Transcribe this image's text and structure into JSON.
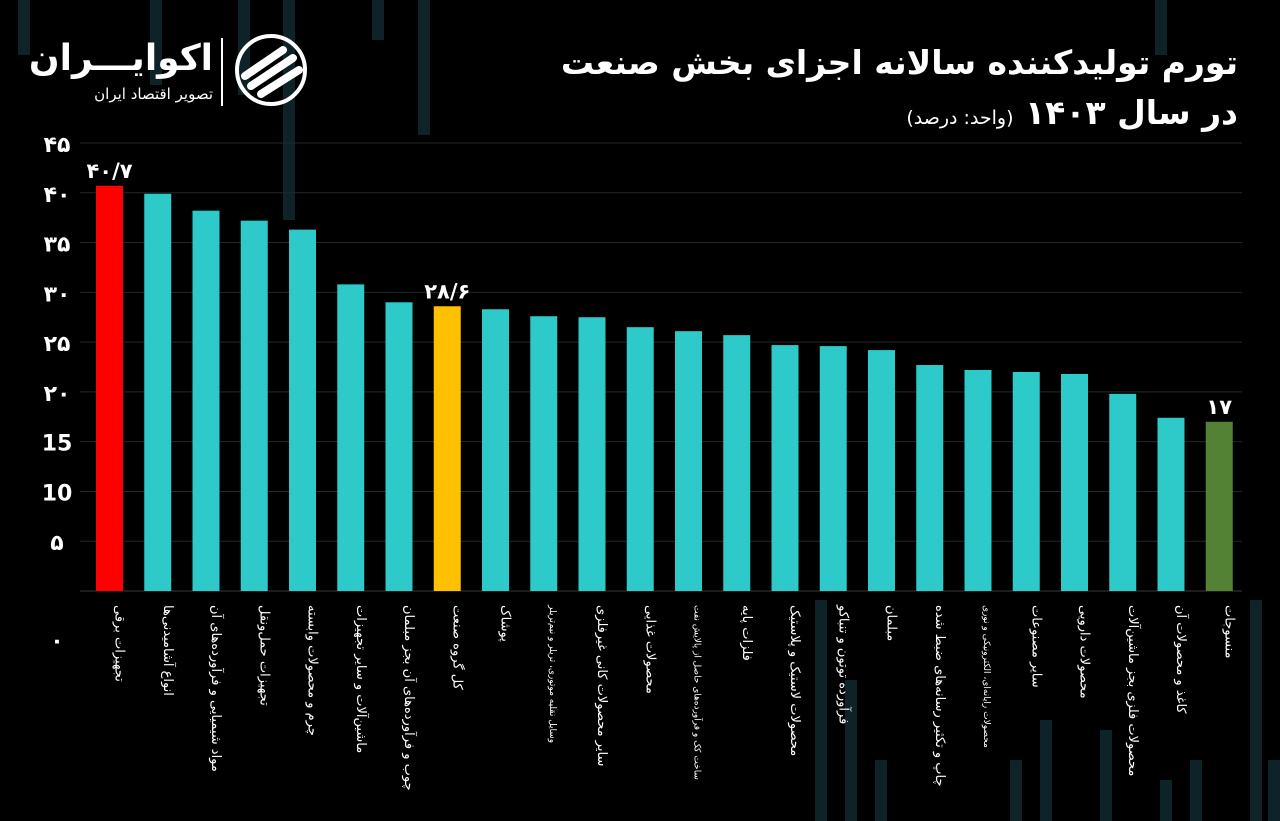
{
  "header": {
    "title_line1": "تورم تولیدکننده سالانه اجزای بخش صنعت",
    "title_line2": "در سال ۱۴۰۳",
    "unit": "(واحد: درصد)"
  },
  "brand": {
    "name": "اکوایـــران",
    "tagline": "تصویر اقتصاد ایران",
    "logo_icon": "ecoiran-logo-icon"
  },
  "colors": {
    "background": "#000000",
    "bar_default": "#2ec9c9",
    "bar_max": "#ff0000",
    "bar_total": "#ffc000",
    "bar_min": "#548235",
    "axis_text": "#ffffff",
    "gridline": "#1e2a2a"
  },
  "chart_data": {
    "type": "bar",
    "title": "تورم تولیدکننده سالانه اجزای بخش صنعت در سال ۱۴۰۳",
    "ylabel": "درصد",
    "ylim": [
      0,
      45
    ],
    "yticks": [
      {
        "value": 0,
        "label": "۰"
      },
      {
        "value": 5,
        "label": "۵"
      },
      {
        "value": 10,
        "label": "10"
      },
      {
        "value": 15,
        "label": "15"
      },
      {
        "value": 20,
        "label": "۲۰"
      },
      {
        "value": 25,
        "label": "۲۵"
      },
      {
        "value": 30,
        "label": "۳۰"
      },
      {
        "value": 35,
        "label": "۳۵"
      },
      {
        "value": 40,
        "label": "۴۰"
      },
      {
        "value": 45,
        "label": "۴۵"
      }
    ],
    "categories": [
      "تجهیزات برقی",
      "انواع آشامیدنی‌ها",
      "مواد شیمیایی و فرآورده‌های آن",
      "تجهیزات حمل‌ونقل",
      "چرم و محصولات وابسته",
      "ماشین‌آلات و سایر تجهیزات",
      "چوب و فرآورده‌های آن بجز مبلمان",
      "کل گروه صنعت",
      "پوشاک",
      "وسایل نقلیه موتوری، تریلر و نیم‌تریلر",
      "سایر محصولات کانی غیرفلزی",
      "محصولات غذایی",
      "ساخت کک و فرآورده‌های حاصل از پالایش نفت",
      "فلزات پایه",
      "محصولات لاستیک و پلاستیک",
      "فرآورده توتون و تنباکو",
      "مبلمان",
      "چاپ و تکثیر رسانه‌های ضبط شده",
      "محصولات رایانه‌ای، الکترونیکی و نوری",
      "سایر مصنوعات",
      "محصولات دارویی",
      "محصولات فلزی بجز ماشین‌آلات",
      "کاغذ و محصولات آن",
      "منسوجات"
    ],
    "values": [
      40.7,
      39.9,
      38.2,
      37.2,
      36.3,
      30.8,
      29.0,
      28.6,
      28.3,
      27.6,
      27.5,
      26.5,
      26.1,
      25.7,
      24.7,
      24.6,
      24.2,
      22.7,
      22.2,
      22.0,
      21.8,
      19.8,
      17.4,
      17.0
    ],
    "highlights": [
      "max",
      "",
      "",
      "",
      "",
      "",
      "",
      "total",
      "",
      "",
      "",
      "",
      "",
      "",
      "",
      "",
      "",
      "",
      "",
      "",
      "",
      "",
      "",
      "min"
    ],
    "data_labels": [
      {
        "index": 0,
        "label": "۴۰/۷"
      },
      {
        "index": 7,
        "label": "۲۸/۶"
      },
      {
        "index": 23,
        "label": "۱۷"
      }
    ]
  }
}
